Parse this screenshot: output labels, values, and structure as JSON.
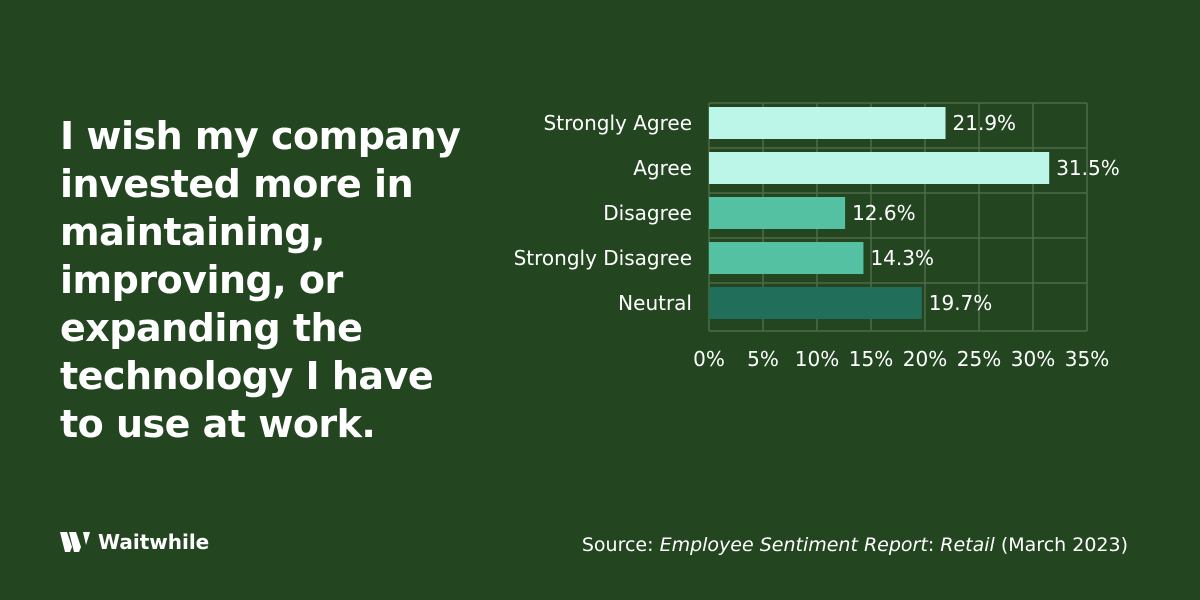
{
  "headline": "I wish my company invested more in maintaining, improving, or expanding the technology I have to use at work.",
  "brand": {
    "name": "Waitwhile",
    "icon": "waitwhile-w-icon"
  },
  "source": {
    "prefix": "Source:",
    "title_part1": "Employee Sentiment Report",
    "colon": ":",
    "title_part2": "Retail",
    "date": "(March 2023)"
  },
  "colors": {
    "background": "#234621",
    "text": "#ffffff",
    "grid": "#4c6a46"
  },
  "chart_data": {
    "type": "bar",
    "orientation": "horizontal",
    "categories": [
      "Strongly Agree",
      "Agree",
      "Disagree",
      "Strongly Disagree",
      "Neutral"
    ],
    "values": [
      21.9,
      31.5,
      12.6,
      14.3,
      19.7
    ],
    "value_labels": [
      "21.9%",
      "31.5%",
      "12.6%",
      "14.3%",
      "19.7%"
    ],
    "bar_colors": [
      "#bcf6e8",
      "#bcf6e8",
      "#55c1a3",
      "#55c1a3",
      "#216f5b"
    ],
    "xlim": [
      0,
      35
    ],
    "xticks": [
      0,
      5,
      10,
      15,
      20,
      25,
      30,
      35
    ],
    "xtick_labels": [
      "0%",
      "5%",
      "10%",
      "15%",
      "20%",
      "25%",
      "30%",
      "35%"
    ],
    "grid": true,
    "legend": "none"
  }
}
